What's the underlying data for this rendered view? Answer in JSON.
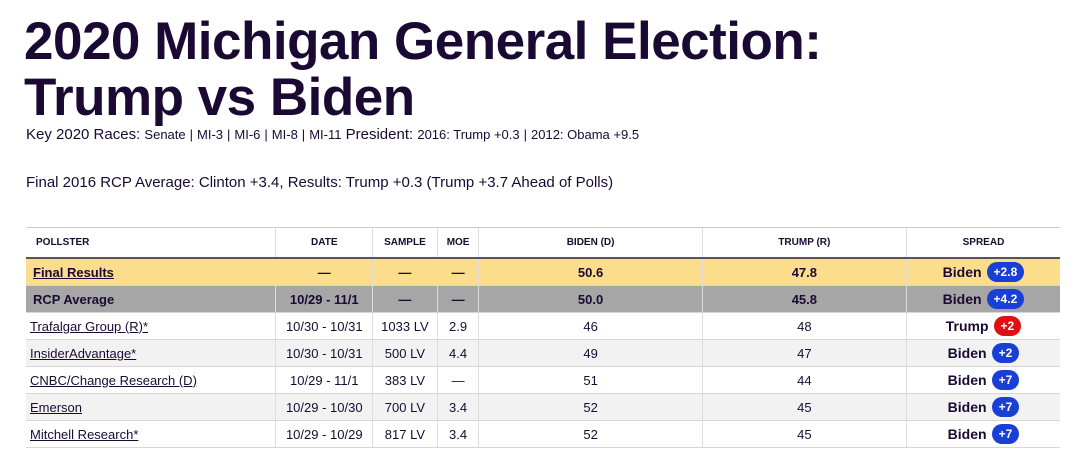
{
  "page": {
    "title_line1": "2020 Michigan General Election:",
    "title_line2": "Trump vs Biden"
  },
  "key_races": {
    "label": "Key 2020 Races:",
    "races": [
      "Senate",
      "MI-3",
      "MI-6",
      "MI-8",
      "MI-11"
    ],
    "president_label": "President:",
    "president_history": [
      "2016: Trump +0.3",
      "2012: Obama +9.5"
    ]
  },
  "final_2016_note": "Final 2016 RCP Average: Clinton +3.4, Results: Trump +0.3 (Trump +3.7 Ahead of Polls)",
  "table": {
    "headers": [
      "POLLSTER",
      "DATE",
      "SAMPLE",
      "MOE",
      "BIDEN (D)",
      "TRUMP (R)",
      "SPREAD"
    ],
    "final_results": {
      "pollster": "Final Results",
      "date": "—",
      "sample": "—",
      "moe": "—",
      "biden": "50.6",
      "trump": "47.8",
      "spread_name": "Biden",
      "spread_value": "+2.8",
      "spread_party": "dem"
    },
    "rcp_average": {
      "pollster": "RCP Average",
      "date": "10/29 - 11/1",
      "sample": "—",
      "moe": "—",
      "biden": "50.0",
      "trump": "45.8",
      "spread_name": "Biden",
      "spread_value": "+4.2",
      "spread_party": "dem"
    },
    "polls": [
      {
        "pollster": "Trafalgar Group (R)*",
        "date": "10/30 - 10/31",
        "sample": "1033 LV",
        "moe": "2.9",
        "biden": "46",
        "trump": "48",
        "spread_name": "Trump",
        "spread_value": "+2",
        "spread_party": "rep"
      },
      {
        "pollster": "InsiderAdvantage*",
        "date": "10/30 - 10/31",
        "sample": "500 LV",
        "moe": "4.4",
        "biden": "49",
        "trump": "47",
        "spread_name": "Biden",
        "spread_value": "+2",
        "spread_party": "dem"
      },
      {
        "pollster": "CNBC/Change Research (D)",
        "date": "10/29 - 11/1",
        "sample": "383 LV",
        "moe": "—",
        "biden": "51",
        "trump": "44",
        "spread_name": "Biden",
        "spread_value": "+7",
        "spread_party": "dem"
      },
      {
        "pollster": "Emerson",
        "date": "10/29 - 10/30",
        "sample": "700 LV",
        "moe": "3.4",
        "biden": "52",
        "trump": "45",
        "spread_name": "Biden",
        "spread_value": "+7",
        "spread_party": "dem"
      },
      {
        "pollster": "Mitchell Research*",
        "date": "10/29 - 10/29",
        "sample": "817 LV",
        "moe": "3.4",
        "biden": "52",
        "trump": "45",
        "spread_name": "Biden",
        "spread_value": "+7",
        "spread_party": "dem"
      }
    ]
  },
  "colors": {
    "title": "#1a0a33",
    "final_row_bg": "#fcdd8b",
    "rcp_row_bg": "#a6a6a6",
    "dem_badge": "#1a3fd6",
    "rep_badge": "#dd1111"
  }
}
